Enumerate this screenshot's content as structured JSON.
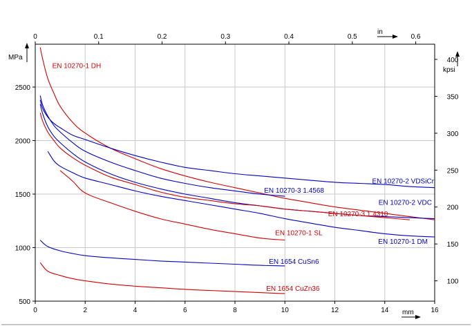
{
  "chart_data": {
    "type": "line",
    "title": "",
    "bottom_axis": {
      "unit_label": "mm",
      "range": [
        0,
        16
      ],
      "ticks": [
        0,
        2,
        4,
        6,
        8,
        10,
        12,
        14,
        16
      ]
    },
    "top_axis": {
      "unit_label": "in",
      "range": [
        0,
        0.6299
      ],
      "ticks": [
        0,
        0.1,
        0.2,
        0.3,
        0.4,
        0.5,
        0.6
      ],
      "tick_labels": [
        "0",
        "0.1",
        "0.2",
        "0.3",
        "0.4",
        "0.5",
        "0.6"
      ]
    },
    "left_axis": {
      "unit_label": "MPa",
      "range": [
        500,
        2900
      ],
      "ticks": [
        500,
        1000,
        1500,
        2000,
        2500
      ]
    },
    "right_axis": {
      "unit_label": "kpsi",
      "range": [
        72.5,
        420.6
      ],
      "ticks": [
        100,
        150,
        200,
        250,
        300,
        350,
        400
      ]
    },
    "grid": true,
    "series": [
      {
        "name": "EN 10270-1 DH",
        "color": "#d40000",
        "x": [
          0.2,
          0.3,
          0.5,
          0.75,
          1,
          1.5,
          2,
          3,
          4,
          5,
          6,
          7,
          8,
          9,
          10,
          11,
          12,
          13,
          14,
          15,
          16
        ],
        "y": [
          2870,
          2760,
          2580,
          2440,
          2320,
          2170,
          2070,
          1930,
          1830,
          1740,
          1670,
          1610,
          1560,
          1510,
          1460,
          1420,
          1380,
          1350,
          1320,
          1290,
          1260
        ]
      },
      {
        "name": "EN 10270-2 VDSiCr",
        "color": "#0000c8",
        "x": [
          0.2,
          0.3,
          0.5,
          0.75,
          1,
          1.5,
          2,
          3,
          4,
          5,
          6,
          7,
          8,
          9,
          10,
          11,
          12,
          13,
          14,
          15,
          16
        ],
        "y": [
          2380,
          2300,
          2220,
          2160,
          2120,
          2050,
          2010,
          1930,
          1860,
          1800,
          1750,
          1720,
          1690,
          1670,
          1650,
          1630,
          1610,
          1600,
          1590,
          1570,
          1560
        ]
      },
      {
        "name": "EN 10270-3 1.4568",
        "color": "#0000c8",
        "x": [
          0.2,
          0.3,
          0.5,
          0.75,
          1,
          1.5,
          2,
          3,
          4,
          5,
          6,
          7,
          8,
          9,
          10
        ],
        "y": [
          2420,
          2330,
          2230,
          2140,
          2080,
          1980,
          1900,
          1800,
          1720,
          1650,
          1600,
          1560,
          1530,
          1500,
          1480
        ]
      },
      {
        "name": "EN 10270-2 VDC",
        "color": "#0000c8",
        "x": [
          0.2,
          0.3,
          0.5,
          0.75,
          1,
          1.5,
          2,
          3,
          4,
          5,
          6,
          7,
          8,
          9,
          10,
          11,
          12,
          13,
          14,
          15,
          16
        ],
        "y": [
          2340,
          2250,
          2130,
          2040,
          1980,
          1880,
          1800,
          1690,
          1610,
          1550,
          1500,
          1460,
          1420,
          1390,
          1360,
          1340,
          1320,
          1300,
          1290,
          1280,
          1270
        ]
      },
      {
        "name": "EN 10270-3 1.4310",
        "color": "#d40000",
        "x": [
          0.2,
          0.3,
          0.5,
          0.75,
          1,
          1.5,
          2,
          3,
          4,
          5,
          6,
          7,
          8,
          9,
          10,
          11,
          12,
          13,
          14,
          15
        ],
        "y": [
          2260,
          2180,
          2080,
          2000,
          1930,
          1840,
          1770,
          1660,
          1590,
          1520,
          1470,
          1440,
          1410,
          1390,
          1360,
          1340,
          1320,
          1300,
          1280,
          1260
        ]
      },
      {
        "name": "EN 10270-1 DM",
        "color": "#0000c8",
        "x": [
          0.5,
          0.75,
          1,
          1.5,
          2,
          3,
          4,
          5,
          6,
          7,
          8,
          9,
          10,
          11,
          12,
          13,
          14,
          15,
          16
        ],
        "y": [
          1900,
          1810,
          1760,
          1700,
          1650,
          1590,
          1530,
          1480,
          1440,
          1400,
          1360,
          1320,
          1270,
          1230,
          1190,
          1160,
          1130,
          1110,
          1100
        ]
      },
      {
        "name": "EN 10270-1 SL",
        "color": "#d40000",
        "x": [
          1,
          1.5,
          2,
          3,
          4,
          5,
          6,
          7,
          8,
          9,
          10
        ],
        "y": [
          1720,
          1620,
          1510,
          1420,
          1340,
          1270,
          1220,
          1170,
          1130,
          1090,
          1070
        ]
      },
      {
        "name": "EN 1654 CuSn6",
        "color": "#0000c8",
        "x": [
          0.2,
          0.5,
          1,
          1.5,
          2,
          3,
          4,
          5,
          6,
          7,
          8,
          9,
          10
        ],
        "y": [
          1070,
          1010,
          970,
          945,
          925,
          905,
          890,
          875,
          865,
          855,
          845,
          835,
          830
        ]
      },
      {
        "name": "EN 1654 CuZn36",
        "color": "#d40000",
        "x": [
          0.2,
          0.5,
          1,
          1.5,
          2,
          3,
          4,
          5,
          6,
          7,
          8,
          9,
          10
        ],
        "y": [
          860,
          780,
          740,
          710,
          690,
          660,
          640,
          625,
          610,
          600,
          590,
          580,
          570
        ]
      }
    ],
    "annotations": [
      {
        "text": "EN 10270-1 DH",
        "series": "EN 10270-1 DH"
      },
      {
        "text": "EN 10270-2 VDSiCr",
        "series": "EN 10270-2 VDSiCr"
      },
      {
        "text": "EN 10270-3 1.4568",
        "series": "EN 10270-3 1.4568"
      },
      {
        "text": "EN 10270-2 VDC",
        "series": "EN 10270-2 VDC"
      },
      {
        "text": "EN 10270-3 1.4310",
        "series": "EN 10270-3 1.4310"
      },
      {
        "text": "EN 10270-1 SL",
        "series": "EN 10270-1 SL"
      },
      {
        "text": "EN 10270-1 DM",
        "series": "EN 10270-1 DM"
      },
      {
        "text": "EN 1654 CuSn6",
        "series": "EN 1654 CuSn6"
      },
      {
        "text": "EN 1654 CuZn36",
        "series": "EN 1654 CuZn36"
      }
    ]
  }
}
